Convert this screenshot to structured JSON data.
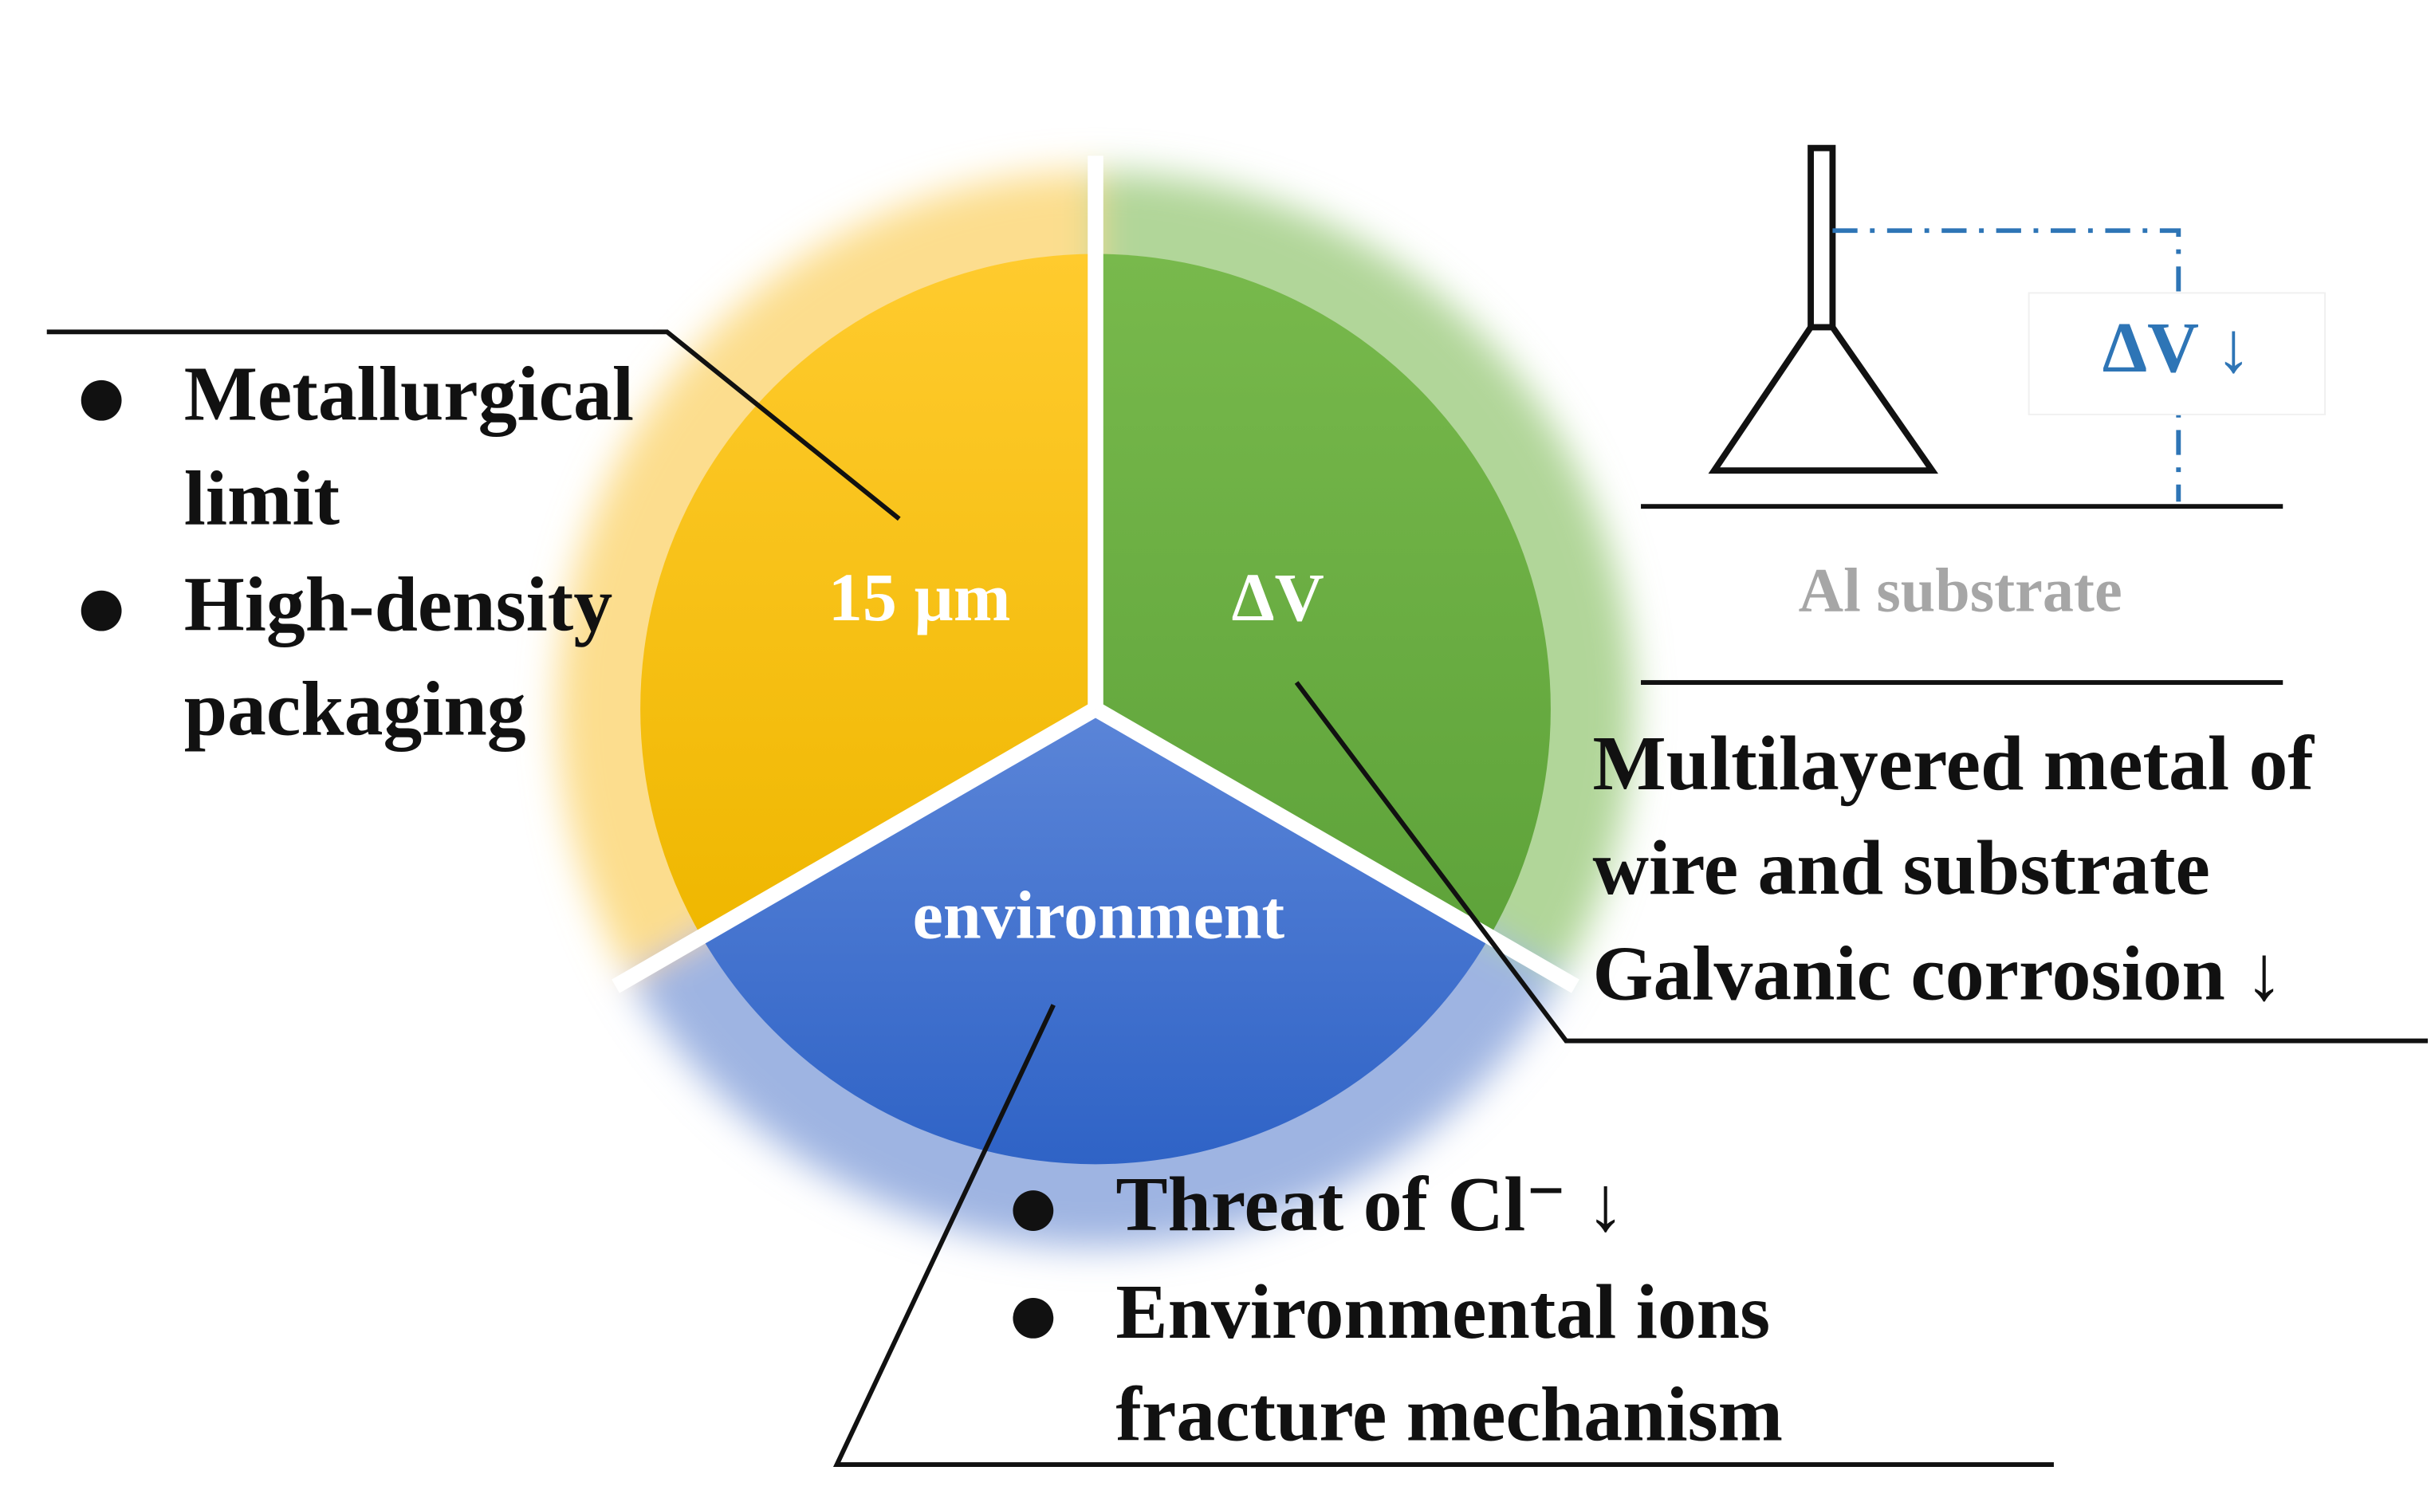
{
  "segments": [
    {
      "label": "15 µm"
    },
    {
      "label": "ΔV"
    },
    {
      "label": "environment"
    }
  ],
  "callouts": {
    "size": {
      "bullets": [
        [
          "Metallurgical",
          "limit"
        ],
        [
          "High-density",
          "packaging"
        ]
      ]
    },
    "potential": {
      "lines": [
        "Multilayered metal of",
        "wire and substrate",
        "Galvanic corrosion ↓"
      ]
    },
    "environment": {
      "bullets": [
        [
          "Threat of Cl⁻ ↓"
        ],
        [
          "Environmental ions",
          "fracture mechanism"
        ]
      ]
    }
  },
  "inset": {
    "delta_label": "ΔV ↓",
    "substrate_label": "Al substrate"
  }
}
